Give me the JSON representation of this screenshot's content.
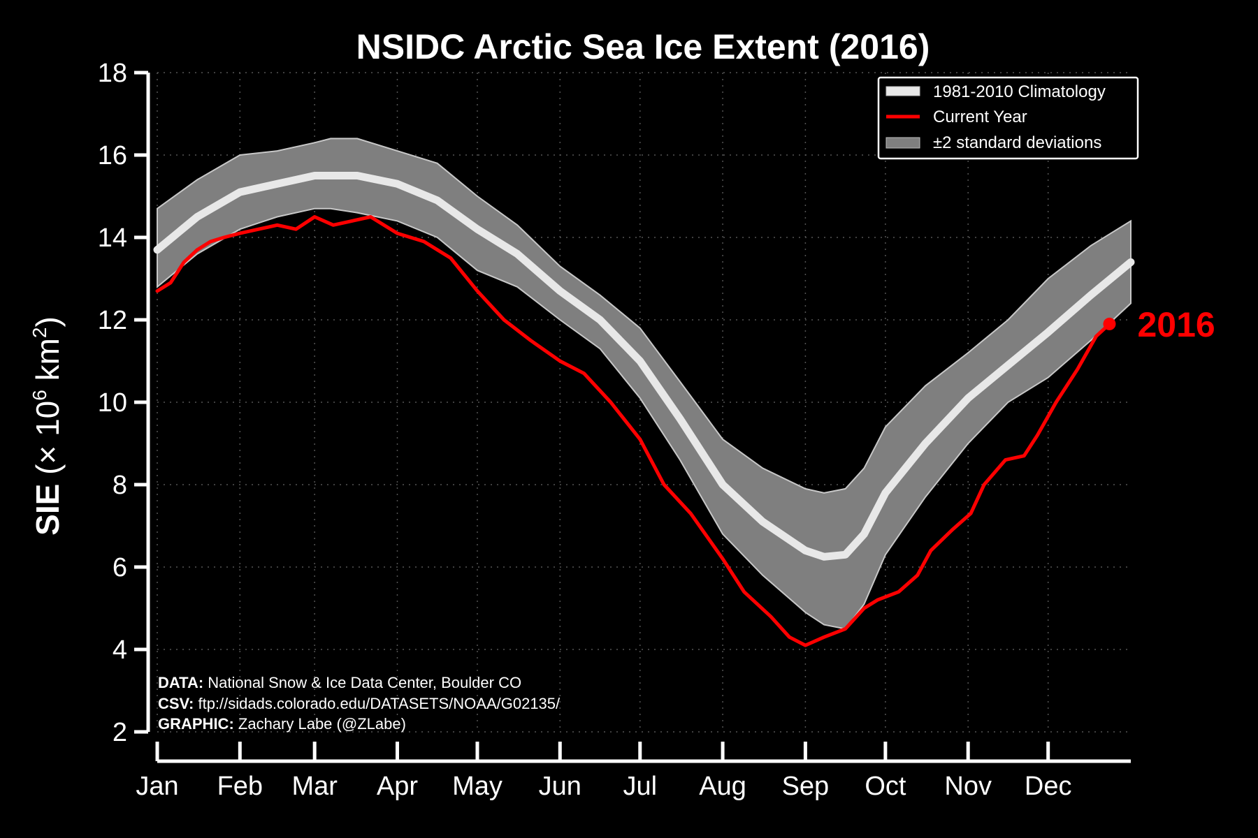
{
  "chart_data": {
    "type": "line",
    "title": "NSIDC Arctic Sea Ice Extent (2016)",
    "ylabel": {
      "prefix": "SIE",
      "open": " (",
      "times": "×",
      "ten": " 10",
      "exp6": "6",
      "unit": " km",
      "exp2": "2",
      "close": ")"
    },
    "ylim": [
      2,
      18
    ],
    "yticks": [
      2,
      4,
      6,
      8,
      10,
      12,
      14,
      16,
      18
    ],
    "xlim": [
      0,
      365
    ],
    "months": [
      {
        "label": "Jan",
        "day": 0
      },
      {
        "label": "Feb",
        "day": 31
      },
      {
        "label": "Mar",
        "day": 59
      },
      {
        "label": "Apr",
        "day": 90
      },
      {
        "label": "May",
        "day": 120
      },
      {
        "label": "Jun",
        "day": 151
      },
      {
        "label": "Jul",
        "day": 181
      },
      {
        "label": "Aug",
        "day": 212
      },
      {
        "label": "Sep",
        "day": 243
      },
      {
        "label": "Oct",
        "day": 273
      },
      {
        "label": "Nov",
        "day": 304
      },
      {
        "label": "Dec",
        "day": 334
      }
    ],
    "grid": true,
    "legend_position": "top-right",
    "legend": [
      {
        "label": "1981-2010 Climatology",
        "color": "#e8e8e8",
        "style": "band"
      },
      {
        "label": "Current Year",
        "color": "#ff0000",
        "style": "line"
      },
      {
        "pm": "±",
        "label": "2 standard deviations",
        "color": "#7f7f7f",
        "style": "band"
      }
    ],
    "climatology": {
      "name": "1981-2010 Climatology",
      "color": "#e8e8e8",
      "x": [
        0,
        15,
        31,
        45,
        59,
        65,
        75,
        90,
        105,
        120,
        135,
        151,
        166,
        181,
        196,
        212,
        227,
        243,
        250,
        258,
        265,
        273,
        288,
        304,
        319,
        334,
        350,
        365
      ],
      "y": [
        13.7,
        14.5,
        15.1,
        15.3,
        15.5,
        15.5,
        15.5,
        15.3,
        14.9,
        14.2,
        13.6,
        12.7,
        12.0,
        11.0,
        9.6,
        8.0,
        7.1,
        6.4,
        6.25,
        6.3,
        6.8,
        7.8,
        9.0,
        10.1,
        10.9,
        11.7,
        12.6,
        13.4
      ]
    },
    "std_band": {
      "name": "±2 standard deviations",
      "color": "#7f7f7f",
      "x": [
        0,
        15,
        31,
        45,
        59,
        65,
        75,
        90,
        105,
        120,
        135,
        151,
        166,
        181,
        196,
        212,
        227,
        243,
        250,
        258,
        265,
        273,
        288,
        304,
        319,
        334,
        350,
        365
      ],
      "upper": [
        14.7,
        15.4,
        16.0,
        16.1,
        16.3,
        16.4,
        16.4,
        16.1,
        15.8,
        15.0,
        14.3,
        13.3,
        12.6,
        11.8,
        10.5,
        9.1,
        8.4,
        7.9,
        7.8,
        7.9,
        8.4,
        9.4,
        10.4,
        11.2,
        12.0,
        13.0,
        13.8,
        14.4
      ],
      "lower": [
        12.8,
        13.6,
        14.2,
        14.5,
        14.7,
        14.7,
        14.6,
        14.4,
        14.0,
        13.2,
        12.8,
        12.0,
        11.3,
        10.1,
        8.6,
        6.8,
        5.8,
        4.9,
        4.6,
        4.5,
        5.1,
        6.3,
        7.7,
        9.0,
        10.0,
        10.6,
        11.5,
        12.4
      ]
    },
    "current_year": {
      "name": "Current Year",
      "color": "#ff0000",
      "x": [
        0,
        5,
        10,
        15,
        20,
        25,
        31,
        38,
        45,
        52,
        59,
        66,
        73,
        80,
        90,
        100,
        110,
        120,
        130,
        140,
        151,
        160,
        170,
        181,
        190,
        200,
        212,
        220,
        230,
        237,
        243,
        250,
        258,
        265,
        270,
        278,
        285,
        290,
        298,
        305,
        310,
        318,
        325,
        330,
        337,
        345,
        352,
        357
      ],
      "y": [
        12.7,
        12.9,
        13.4,
        13.7,
        13.9,
        14.0,
        14.1,
        14.2,
        14.3,
        14.2,
        14.5,
        14.3,
        14.4,
        14.5,
        14.1,
        13.9,
        13.5,
        12.7,
        12.0,
        11.5,
        11.0,
        10.7,
        10.0,
        9.1,
        8.0,
        7.3,
        6.2,
        5.4,
        4.8,
        4.3,
        4.1,
        4.3,
        4.5,
        5.0,
        5.2,
        5.4,
        5.8,
        6.4,
        6.9,
        7.3,
        8.0,
        8.6,
        8.7,
        9.2,
        10.0,
        10.8,
        11.6,
        11.9
      ]
    },
    "end_label": "2016",
    "credits": [
      {
        "key": "DATA:",
        "text": " National Snow & Ice Data Center, Boulder CO"
      },
      {
        "key": "CSV:",
        "text": " ftp://sidads.colorado.edu/DATASETS/NOAA/G02135/"
      },
      {
        "key": "GRAPHIC:",
        "text": " Zachary Labe (@ZLabe)"
      }
    ]
  }
}
